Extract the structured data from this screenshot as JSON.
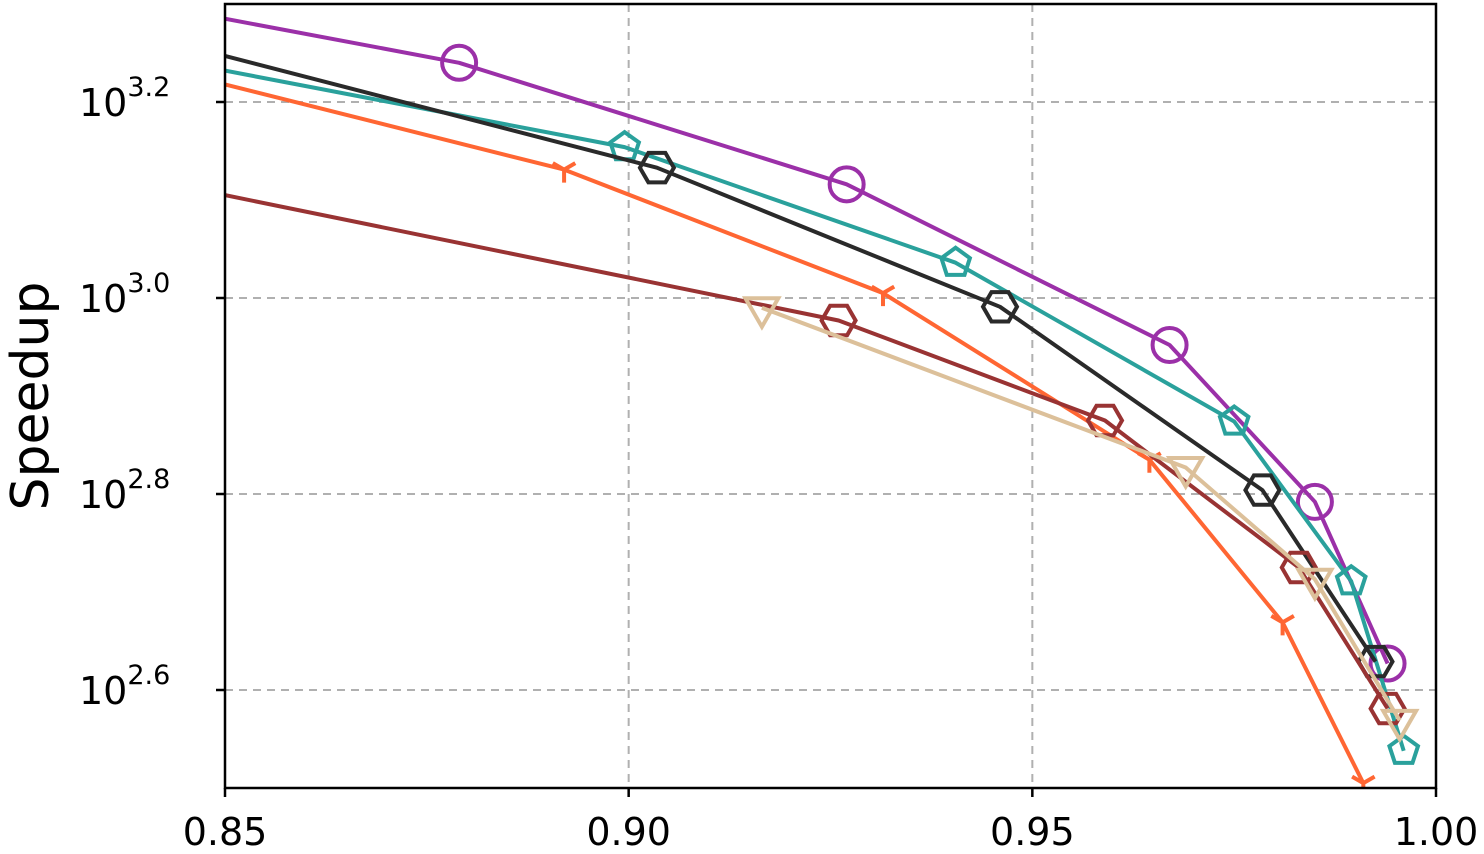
{
  "chart_data": {
    "type": "line",
    "title": "",
    "xlabel": "",
    "ylabel": "Speedup",
    "xlim": [
      0.85,
      1.0
    ],
    "ylim": [
      2.5,
      3.3
    ],
    "yscale": "log10",
    "grid": true,
    "legend": "none",
    "xticks": [
      {
        "value": 0.85,
        "label": "0.85"
      },
      {
        "value": 0.9,
        "label": "0.90"
      },
      {
        "value": 0.95,
        "label": "0.95"
      },
      {
        "value": 1.0,
        "label": "1.00"
      }
    ],
    "yticks": [
      {
        "value": 2.6,
        "base": "10",
        "exp": "2.6"
      },
      {
        "value": 2.8,
        "base": "10",
        "exp": "2.8"
      },
      {
        "value": 3.0,
        "base": "10",
        "exp": "3.0"
      },
      {
        "value": 3.2,
        "base": "10",
        "exp": "3.2"
      }
    ],
    "series": [
      {
        "color": "#9b30a8",
        "marker": "circle",
        "line": [
          [
            0.85,
            3.285
          ],
          [
            0.879,
            3.24
          ],
          [
            0.927,
            3.116
          ],
          [
            0.967,
            2.952
          ],
          [
            0.985,
            2.792
          ],
          [
            0.994,
            2.627
          ]
        ],
        "markers": [
          [
            0.879,
            3.24
          ],
          [
            0.927,
            3.116
          ],
          [
            0.967,
            2.952
          ],
          [
            0.985,
            2.792
          ],
          [
            0.994,
            2.627
          ]
        ]
      },
      {
        "color": "#2aa19c",
        "marker": "pentagon",
        "line": [
          [
            0.85,
            3.232
          ],
          [
            0.8995,
            3.154
          ],
          [
            0.9405,
            3.036
          ],
          [
            0.975,
            2.874
          ],
          [
            0.9895,
            2.711
          ],
          [
            0.996,
            2.538
          ]
        ],
        "markers": [
          [
            0.8995,
            3.154
          ],
          [
            0.9405,
            3.036
          ],
          [
            0.975,
            2.874
          ],
          [
            0.9895,
            2.711
          ],
          [
            0.996,
            2.538
          ]
        ]
      },
      {
        "color": "#2a2a2a",
        "marker": "hexagon",
        "line": [
          [
            0.85,
            3.247
          ],
          [
            0.9035,
            3.133
          ],
          [
            0.946,
            2.991
          ],
          [
            0.9785,
            2.804
          ],
          [
            0.9925,
            2.629
          ]
        ],
        "markers": [
          [
            0.9035,
            3.133
          ],
          [
            0.946,
            2.991
          ],
          [
            0.9785,
            2.804
          ],
          [
            0.9925,
            2.629
          ]
        ]
      },
      {
        "color": "#ff6633",
        "marker": "tri",
        "line": [
          [
            0.85,
            3.218
          ],
          [
            0.892,
            3.131
          ],
          [
            0.9315,
            3.005
          ],
          [
            0.9645,
            2.835
          ],
          [
            0.981,
            2.669
          ],
          [
            0.991,
            2.505
          ]
        ],
        "markers": [
          [
            0.892,
            3.131
          ],
          [
            0.9315,
            3.005
          ],
          [
            0.9645,
            2.835
          ],
          [
            0.981,
            2.669
          ],
          [
            0.991,
            2.505
          ]
        ]
      },
      {
        "color": "#993333",
        "marker": "hexagon",
        "line": [
          [
            0.85,
            3.105
          ],
          [
            0.926,
            2.977
          ],
          [
            0.959,
            2.875
          ],
          [
            0.983,
            2.725
          ],
          [
            0.994,
            2.581
          ]
        ],
        "markers": [
          [
            0.926,
            2.977
          ],
          [
            0.959,
            2.875
          ],
          [
            0.983,
            2.725
          ],
          [
            0.994,
            2.581
          ]
        ]
      },
      {
        "color": "#dcc09a",
        "marker": "triangle-down",
        "line": [
          [
            0.9165,
            2.99
          ],
          [
            0.969,
            2.827
          ],
          [
            0.985,
            2.713
          ],
          [
            0.9955,
            2.569
          ]
        ],
        "markers": [
          [
            0.9165,
            2.99
          ],
          [
            0.969,
            2.827
          ],
          [
            0.985,
            2.713
          ],
          [
            0.9955,
            2.569
          ]
        ]
      }
    ]
  }
}
